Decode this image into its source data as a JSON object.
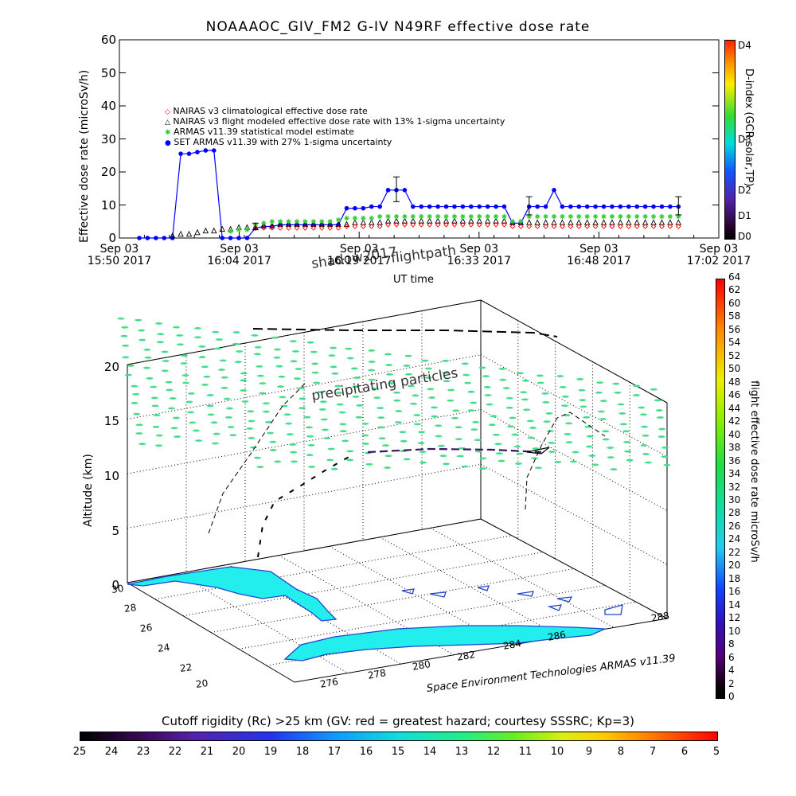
{
  "title": "NOAAAOC_GIV_FM2  G-IV    N49RF  effective dose rate",
  "colors": {
    "nairas_clim": "#ff0000",
    "nairas_flight": "#000000",
    "armas_stat": "#33cc33",
    "set_armas": "#0000ff",
    "precip": "#44dd88",
    "land": "#22eeee",
    "coast": "#2244cc"
  },
  "top_chart": {
    "ylabel": "Effective dose rate (microSv/h)",
    "yticks": [
      "0",
      "10",
      "20",
      "30",
      "40",
      "50",
      "60"
    ],
    "xticks": [
      {
        "line1": "Sep 03",
        "line2": "15:50 2017"
      },
      {
        "line1": "Sep 03",
        "line2": "16:04 2017"
      },
      {
        "line1": "Sep 03",
        "line2": "16:19 2017"
      },
      {
        "line1": "Sep 03",
        "line2": "16:33 2017"
      },
      {
        "line1": "Sep 03",
        "line2": "16:48 2017"
      },
      {
        "line1": "Sep 03",
        "line2": "17:02 2017"
      }
    ],
    "xlabel": "UT time",
    "dindex_label": "D-index (GCR,solar,TP)",
    "dindex_ticks": [
      "D4",
      "D3",
      "D2",
      "D1",
      "D0"
    ]
  },
  "legend": [
    {
      "symbol": "◇",
      "label": "NAIRAS v3 climatological effective dose rate"
    },
    {
      "symbol": "△",
      "label": "NAIRAS v3 flight modeled effective dose rate with 13% 1-sigma uncertainty"
    },
    {
      "symbol": "✱",
      "label": "ARMAS v11.39 statistical model estimate"
    },
    {
      "symbol": "●",
      "label": "SET ARMAS v11.39 with 27% 1-sigma uncertainty"
    }
  ],
  "chart_data": {
    "type": "line",
    "xlabel": "UT time",
    "ylabel": "Effective dose rate (microSv/h)",
    "ylim": [
      0,
      60
    ],
    "x_range": [
      "15:50",
      "17:02"
    ],
    "series": [
      {
        "name": "SET ARMAS v11.39 with 27% 1-sigma uncertainty",
        "marker": "circle",
        "points": [
          [
            0,
            0
          ],
          [
            1,
            0
          ],
          [
            2,
            0
          ],
          [
            3,
            0
          ],
          [
            4,
            0
          ],
          [
            5,
            25.5
          ],
          [
            6,
            25.5
          ],
          [
            7,
            26
          ],
          [
            8,
            26.5
          ],
          [
            9,
            26.5
          ],
          [
            10,
            0
          ],
          [
            11,
            0
          ],
          [
            12,
            0
          ],
          [
            13,
            0
          ],
          [
            14,
            3
          ],
          [
            15,
            3.5
          ],
          [
            16,
            3.5
          ],
          [
            17,
            4
          ],
          [
            18,
            4
          ],
          [
            19,
            4
          ],
          [
            20,
            4
          ],
          [
            21,
            4
          ],
          [
            22,
            4
          ],
          [
            23,
            4
          ],
          [
            24,
            4
          ],
          [
            25,
            9
          ],
          [
            26,
            9
          ],
          [
            27,
            9
          ],
          [
            28,
            9.5
          ],
          [
            29,
            9.5
          ],
          [
            30,
            14.5
          ],
          [
            31,
            14.5
          ],
          [
            32,
            14.5
          ],
          [
            33,
            9.5
          ],
          [
            34,
            9.5
          ],
          [
            35,
            9.5
          ],
          [
            36,
            9.5
          ],
          [
            37,
            9.5
          ],
          [
            38,
            9.5
          ],
          [
            39,
            9.5
          ],
          [
            40,
            9.5
          ],
          [
            41,
            9.5
          ],
          [
            42,
            9.5
          ],
          [
            43,
            9.5
          ],
          [
            44,
            9.5
          ],
          [
            45,
            4.5
          ],
          [
            46,
            4.5
          ],
          [
            47,
            9.5
          ],
          [
            48,
            9.5
          ],
          [
            49,
            9.5
          ],
          [
            50,
            14.5
          ],
          [
            51,
            9.5
          ],
          [
            52,
            9.5
          ],
          [
            53,
            9.5
          ],
          [
            54,
            9.5
          ],
          [
            55,
            9.5
          ],
          [
            56,
            9.5
          ],
          [
            57,
            9.5
          ],
          [
            58,
            9.5
          ],
          [
            59,
            9.5
          ],
          [
            60,
            9.5
          ],
          [
            61,
            9.5
          ],
          [
            62,
            9.5
          ],
          [
            63,
            9.5
          ],
          [
            64,
            9.5
          ],
          [
            65,
            9.5
          ]
        ]
      },
      {
        "name": "NAIRAS v3 flight modeled effective dose rate with 13% 1-sigma uncertainty",
        "marker": "triangle",
        "points": [
          [
            4,
            0.5
          ],
          [
            5,
            1
          ],
          [
            6,
            1
          ],
          [
            7,
            1.5
          ],
          [
            8,
            2
          ],
          [
            9,
            2
          ],
          [
            10,
            2.5
          ],
          [
            11,
            2.5
          ],
          [
            12,
            3
          ],
          [
            13,
            3
          ],
          [
            14,
            3
          ],
          [
            15,
            3.5
          ],
          [
            16,
            3.5
          ],
          [
            17,
            4
          ],
          [
            18,
            4
          ],
          [
            19,
            4
          ],
          [
            20,
            4
          ],
          [
            21,
            4
          ],
          [
            22,
            4
          ],
          [
            23,
            4
          ],
          [
            24,
            4
          ],
          [
            25,
            4
          ],
          [
            26,
            4.5
          ],
          [
            27,
            4.5
          ],
          [
            28,
            4.5
          ],
          [
            29,
            4.5
          ],
          [
            30,
            5
          ],
          [
            31,
            5
          ],
          [
            32,
            5
          ],
          [
            33,
            5
          ],
          [
            34,
            5
          ],
          [
            35,
            5
          ],
          [
            36,
            5
          ],
          [
            37,
            5
          ],
          [
            38,
            5
          ],
          [
            39,
            5
          ],
          [
            40,
            5
          ],
          [
            41,
            5
          ],
          [
            42,
            5
          ],
          [
            43,
            5
          ],
          [
            44,
            5
          ],
          [
            45,
            4.5
          ],
          [
            46,
            4.5
          ],
          [
            47,
            4.5
          ],
          [
            48,
            4.5
          ],
          [
            49,
            4.5
          ],
          [
            50,
            4.5
          ],
          [
            51,
            4.5
          ],
          [
            52,
            4.5
          ],
          [
            53,
            4.5
          ],
          [
            54,
            4.5
          ],
          [
            55,
            4.5
          ],
          [
            56,
            4.5
          ],
          [
            57,
            4.5
          ],
          [
            58,
            4.5
          ],
          [
            59,
            4.5
          ],
          [
            60,
            4.5
          ],
          [
            61,
            4.5
          ],
          [
            62,
            4.5
          ],
          [
            63,
            4.5
          ],
          [
            64,
            4.5
          ],
          [
            65,
            4.5
          ]
        ]
      },
      {
        "name": "ARMAS v11.39 statistical model estimate",
        "marker": "star",
        "points": [
          [
            11,
            2
          ],
          [
            12,
            2.5
          ],
          [
            13,
            2.5
          ],
          [
            14,
            4
          ],
          [
            15,
            4.5
          ],
          [
            16,
            5
          ],
          [
            17,
            5
          ],
          [
            18,
            5
          ],
          [
            19,
            5
          ],
          [
            20,
            5
          ],
          [
            21,
            5
          ],
          [
            22,
            5
          ],
          [
            23,
            5
          ],
          [
            24,
            5.5
          ],
          [
            25,
            6
          ],
          [
            26,
            6
          ],
          [
            27,
            6
          ],
          [
            28,
            6
          ],
          [
            29,
            6.5
          ],
          [
            30,
            6.5
          ],
          [
            31,
            6.5
          ],
          [
            32,
            6.5
          ],
          [
            33,
            6.5
          ],
          [
            34,
            6.5
          ],
          [
            35,
            6.5
          ],
          [
            36,
            6.5
          ],
          [
            37,
            6.5
          ],
          [
            38,
            6.5
          ],
          [
            39,
            6.5
          ],
          [
            40,
            6.5
          ],
          [
            41,
            6.5
          ],
          [
            42,
            6.5
          ],
          [
            43,
            6.5
          ],
          [
            44,
            6.5
          ],
          [
            45,
            5
          ],
          [
            46,
            5
          ],
          [
            47,
            6.5
          ],
          [
            48,
            6.5
          ],
          [
            49,
            6.5
          ],
          [
            50,
            6.5
          ],
          [
            51,
            6.5
          ],
          [
            52,
            6.5
          ],
          [
            53,
            6.5
          ],
          [
            54,
            6.5
          ],
          [
            55,
            6.5
          ],
          [
            56,
            6.5
          ],
          [
            57,
            6.5
          ],
          [
            58,
            6.5
          ],
          [
            59,
            6.5
          ],
          [
            60,
            6.5
          ],
          [
            61,
            6.5
          ],
          [
            62,
            6.5
          ],
          [
            63,
            6.5
          ],
          [
            64,
            6.5
          ],
          [
            65,
            6.5
          ]
        ]
      },
      {
        "name": "NAIRAS v3 climatological effective dose rate",
        "marker": "diamond",
        "points": [
          [
            14,
            3
          ],
          [
            15,
            3
          ],
          [
            16,
            3
          ],
          [
            17,
            3
          ],
          [
            18,
            3
          ],
          [
            19,
            3
          ],
          [
            20,
            3
          ],
          [
            21,
            3
          ],
          [
            22,
            3
          ],
          [
            23,
            3
          ],
          [
            24,
            3
          ],
          [
            25,
            3.5
          ],
          [
            26,
            3.5
          ],
          [
            27,
            3.5
          ],
          [
            28,
            3.5
          ],
          [
            29,
            3.5
          ],
          [
            30,
            4
          ],
          [
            31,
            4
          ],
          [
            32,
            4
          ],
          [
            33,
            4
          ],
          [
            34,
            4
          ],
          [
            35,
            4
          ],
          [
            36,
            4
          ],
          [
            37,
            4
          ],
          [
            38,
            4
          ],
          [
            39,
            4
          ],
          [
            40,
            4
          ],
          [
            41,
            4
          ],
          [
            42,
            4
          ],
          [
            43,
            4
          ],
          [
            44,
            4
          ],
          [
            45,
            3.5
          ],
          [
            46,
            3.5
          ],
          [
            47,
            3.5
          ],
          [
            48,
            3.5
          ],
          [
            49,
            3.5
          ],
          [
            50,
            3.5
          ],
          [
            51,
            3.5
          ],
          [
            52,
            3.5
          ],
          [
            53,
            3.5
          ],
          [
            54,
            3.5
          ],
          [
            55,
            3.5
          ],
          [
            56,
            3.5
          ],
          [
            57,
            3.5
          ],
          [
            58,
            3.5
          ],
          [
            59,
            3.5
          ],
          [
            60,
            3.5
          ],
          [
            61,
            3.5
          ],
          [
            62,
            3.5
          ],
          [
            63,
            3.5
          ],
          [
            64,
            3.5
          ],
          [
            65,
            3.5
          ]
        ]
      }
    ],
    "error_bars": [
      [
        14,
        2.5,
        4.5
      ],
      [
        31,
        11,
        18.5
      ],
      [
        47,
        7,
        12.5
      ],
      [
        65,
        7,
        12.5
      ]
    ]
  },
  "bottom_chart": {
    "annotations": {
      "shadow": "shadow2017",
      "flightpath": "flightpath",
      "precip": "precipitating particles"
    },
    "alt_label": "Altitude (km)",
    "alt_ticks": [
      "0",
      "5",
      "10",
      "15",
      "20"
    ],
    "lat_ticks": [
      "30",
      "28",
      "26",
      "24",
      "22",
      "20"
    ],
    "lon_ticks": [
      "276",
      "278",
      "280",
      "282",
      "284",
      "286",
      "288"
    ],
    "credit": "Space Environment Technologies ARMAS v11.39",
    "dose_colorbar_label": "flight effective dose rate microSv/h",
    "dose_colorbar_ticks": [
      "64",
      "62",
      "60",
      "58",
      "56",
      "54",
      "52",
      "50",
      "48",
      "46",
      "44",
      "42",
      "40",
      "38",
      "36",
      "34",
      "32",
      "30",
      "28",
      "26",
      "24",
      "22",
      "20",
      "18",
      "16",
      "14",
      "12",
      "10",
      "8",
      "6",
      "4",
      "2",
      "0"
    ],
    "rc_title": "Cutoff rigidity (Rc) >25 km (GV: red = greatest hazard; courtesy SSSRC; Kp=3)",
    "rc_ticks": [
      "25",
      "24",
      "23",
      "22",
      "21",
      "20",
      "19",
      "18",
      "17",
      "16",
      "15",
      "14",
      "13",
      "12",
      "11",
      "10",
      "9",
      "8",
      "7",
      "6",
      "5"
    ]
  }
}
